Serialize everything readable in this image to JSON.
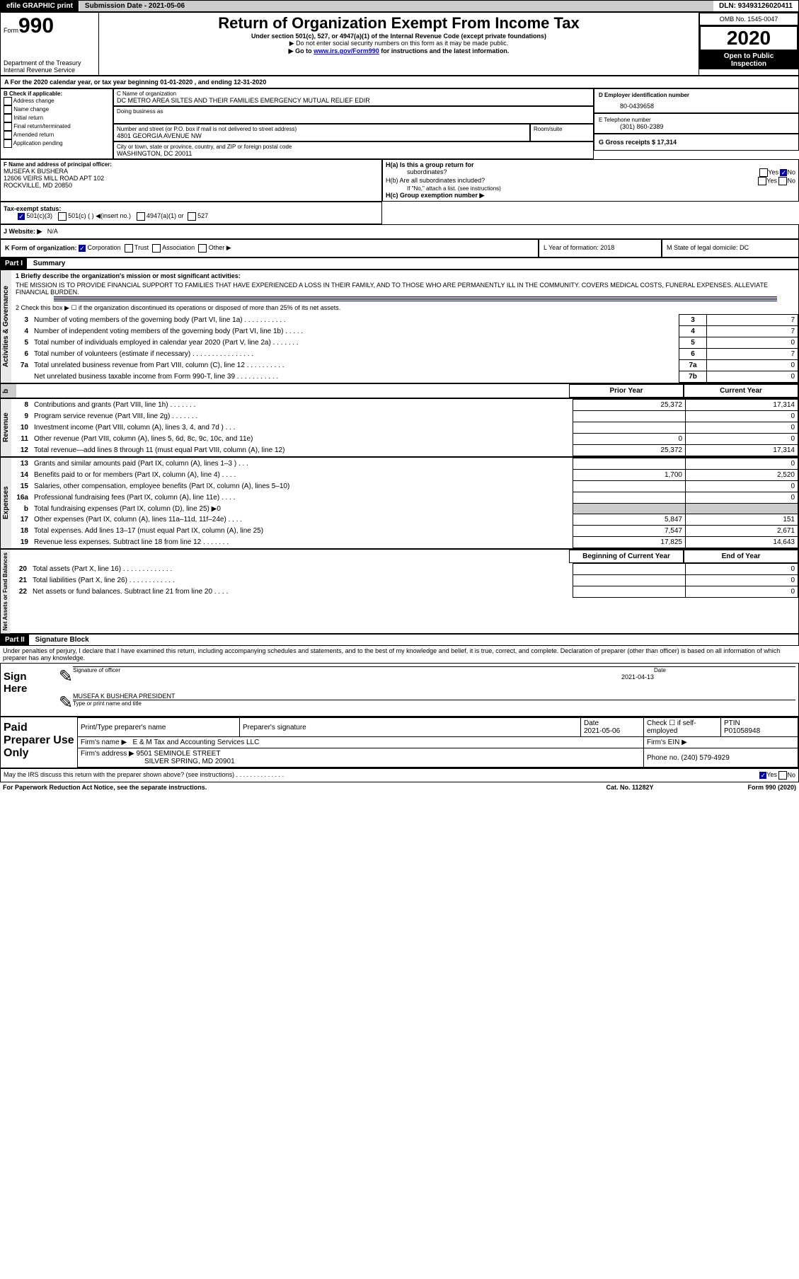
{
  "header": {
    "efile": "efile GRAPHIC print",
    "subdate_label": "Submission Date - 2021-05-06",
    "dln": "DLN: 93493126020411"
  },
  "form": {
    "form": "Form",
    "num": "990",
    "title": "Return of Organization Exempt From Income Tax",
    "sub1": "Under section 501(c), 527, or 4947(a)(1) of the Internal Revenue Code (except private foundations)",
    "sub2": "▶ Do not enter social security numbers on this form as it may be made public.",
    "sub3": "▶ Go to ",
    "sub3link": "www.irs.gov/Form990",
    "sub3b": " for instructions and the latest information.",
    "dept": "Department of the Treasury",
    "irs": "Internal Revenue Service",
    "omb": "OMB No. 1545-0047",
    "year": "2020",
    "open": "Open to Public",
    "insp": "Inspection"
  },
  "lineA": {
    "text": "A For the 2020 calendar year, or tax year beginning 01-01-2020   , and ending 12-31-2020"
  },
  "B": {
    "hdr": "B Check if applicable:",
    "items": [
      "Address change",
      "Name change",
      "Initial return",
      "Final return/terminated",
      "Amended return",
      "Application pending"
    ]
  },
  "C": {
    "label": "C Name of organization",
    "name": "DC METRO AREA SILTES AND THEIR FAMILIES EMERGENCY MUTUAL RELIEF EDIR",
    "dba": "Doing business as",
    "street_label": "Number and street (or P.O. box if mail is not delivered to street address)",
    "room": "Room/suite",
    "street": "4801 GEORGIA AVENUE NW",
    "city_label": "City or town, state or province, country, and ZIP or foreign postal code",
    "city": "WASHINGTON, DC  20011"
  },
  "D": {
    "label": "D Employer identification number",
    "ein": "80-0439658"
  },
  "E": {
    "label": "E Telephone number",
    "tel": "(301) 860-2389"
  },
  "G": {
    "label": "G Gross receipts $ 17,314"
  },
  "F": {
    "label": "F  Name and address of principal officer:",
    "name": "MUSEFA K BUSHERA",
    "addr1": "12606 VEIRS MILL ROAD APT 102",
    "addr2": "ROCKVILLE, MD  20850"
  },
  "H": {
    "a": "H(a)  Is this a group return for",
    "a2": "subordinates?",
    "yes": "Yes",
    "no": "No",
    "b": "H(b)  Are all subordinates included?",
    "bnote": "If \"No,\" attach a list. (see instructions)",
    "c": "H(c)  Group exemption number ▶"
  },
  "I": {
    "label": "Tax-exempt status:",
    "o1": "501(c)(3)",
    "o2": "501(c) (  ) ◀(insert no.)",
    "o3": "4947(a)(1) or",
    "o4": "527"
  },
  "J": {
    "label": "J   Website: ▶",
    "val": "N/A"
  },
  "K": {
    "label": "K Form of organization:",
    "o1": "Corporation",
    "o2": "Trust",
    "o3": "Association",
    "o4": "Other ▶"
  },
  "L": {
    "label": "L Year of formation: 2018"
  },
  "M": {
    "label": "M State of legal domicile: DC"
  },
  "p1": {
    "bar": "Part I",
    "title": "Summary",
    "q1": "1  Briefly describe the organization's mission or most significant activities:",
    "mission": "THE MISSION IS TO PROVIDE FINANCIAL SUPPORT TO FAMILIES THAT HAVE EXPERIENCED A LOSS IN THEIR FAMILY, AND TO THOSE WHO ARE PERMANENTLY ILL IN THE COMMUNITY. COVERS MEDICAL COSTS, FUNERAL EXPENSES. ALLEVIATE FINANCIAL BURDEN.",
    "q2": "2  Check this box ▶ ☐  if the organization discontinued its operations or disposed of more than 25% of its net assets.",
    "rows": [
      {
        "n": "3",
        "t": "Number of voting members of the governing body (Part VI, line 1a)  .   .   .   .   .   .   .   .   .   .   .",
        "box": "3",
        "v": "7"
      },
      {
        "n": "4",
        "t": "Number of independent voting members of the governing body (Part VI, line 1b)   .   .   .   .   .",
        "box": "4",
        "v": "7"
      },
      {
        "n": "5",
        "t": "Total number of individuals employed in calendar year 2020 (Part V, line 2a)   .   .   .   .   .   .   .",
        "box": "5",
        "v": "0"
      },
      {
        "n": "6",
        "t": "Total number of volunteers (estimate if necessary)    .   .   .   .   .   .   .   .   .   .   .   .   .   .   .   .",
        "box": "6",
        "v": "7"
      },
      {
        "n": "7a",
        "t": "Total unrelated business revenue from Part VIII, column (C), line 12   .   .   .   .   .   .   .   .   .   .",
        "box": "7a",
        "v": "0"
      },
      {
        "n": " ",
        "t": "Net unrelated business taxable income from Form 990-T, line 39   .   .   .   .   .   .   .   .   .   .   .",
        "box": "7b",
        "v": "0"
      }
    ],
    "prior": "Prior Year",
    "curr": "Current Year",
    "rev": [
      {
        "n": "8",
        "t": "Contributions and grants (Part VIII, line 1h)   .   .   .   .   .   .   .",
        "p": "25,372",
        "c": "17,314"
      },
      {
        "n": "9",
        "t": "Program service revenue (Part VIII, line 2g)   .   .   .   .   .   .   .",
        "p": "",
        "c": "0"
      },
      {
        "n": "10",
        "t": "Investment income (Part VIII, column (A), lines 3, 4, and 7d )   .   .   .",
        "p": "",
        "c": "0"
      },
      {
        "n": "11",
        "t": "Other revenue (Part VIII, column (A), lines 5, 6d, 8c, 9c, 10c, and 11e)",
        "p": "0",
        "c": "0"
      },
      {
        "n": "12",
        "t": "Total revenue—add lines 8 through 11 (must equal Part VIII, column (A), line 12)",
        "p": "25,372",
        "c": "17,314"
      }
    ],
    "exp": [
      {
        "n": "13",
        "t": "Grants and similar amounts paid (Part IX, column (A), lines 1–3 )  .   .   .",
        "p": "",
        "c": "0"
      },
      {
        "n": "14",
        "t": "Benefits paid to or for members (Part IX, column (A), line 4)   .   .   .   .",
        "p": "1,700",
        "c": "2,520"
      },
      {
        "n": "15",
        "t": "Salaries, other compensation, employee benefits (Part IX, column (A), lines 5–10)",
        "p": "",
        "c": "0"
      },
      {
        "n": "16a",
        "t": "Professional fundraising fees (Part IX, column (A), line 11e)   .   .   .   .",
        "p": "",
        "c": "0"
      },
      {
        "n": "b",
        "t": "Total fundraising expenses (Part IX, column (D), line 25) ▶0",
        "p": "GREY",
        "c": "GREY"
      },
      {
        "n": "17",
        "t": "Other expenses (Part IX, column (A), lines 11a–11d, 11f–24e)   .   .   .   .",
        "p": "5,847",
        "c": "151"
      },
      {
        "n": "18",
        "t": "Total expenses. Add lines 13–17 (must equal Part IX, column (A), line 25)",
        "p": "7,547",
        "c": "2,671"
      },
      {
        "n": "19",
        "t": "Revenue less expenses. Subtract line 18 from line 12  .   .   .   .   .   .   .",
        "p": "17,825",
        "c": "14,643"
      }
    ],
    "begin": "Beginning of Current Year",
    "end": "End of Year",
    "net": [
      {
        "n": "20",
        "t": "Total assets (Part X, line 16)  .   .   .   .   .   .   .   .   .   .   .   .   .",
        "p": "",
        "c": "0"
      },
      {
        "n": "21",
        "t": "Total liabilities (Part X, line 26)   .   .   .   .   .   .   .   .   .   .   .   .",
        "p": "",
        "c": "0"
      },
      {
        "n": "22",
        "t": "Net assets or fund balances. Subtract line 21 from line 20   .   .   .   .",
        "p": "",
        "c": "0"
      }
    ],
    "side": {
      "ag": "Activities & Governance",
      "rev": "Revenue",
      "exp": "Expenses",
      "net": "Net Assets or Fund Balances",
      "b": "b"
    }
  },
  "p2": {
    "bar": "Part II",
    "title": "Signature Block",
    "decl": "Under penalties of perjury, I declare that I have examined this return, including accompanying schedules and statements, and to the best of my knowledge and belief, it is true, correct, and complete. Declaration of preparer (other than officer) is based on all information of which preparer has any knowledge."
  },
  "sign": {
    "here": "Sign Here",
    "sigoff": "Signature of officer",
    "date": "Date",
    "dateval": "2021-04-13",
    "name": "MUSEFA K BUSHERA PRESIDENT",
    "type": "Type or print name and title"
  },
  "paid": {
    "title": "Paid Preparer Use Only",
    "c1": "Print/Type preparer's name",
    "c2": "Preparer's signature",
    "c3": "Date",
    "c3v": "2021-05-06",
    "c4": "Check ☐ if self-employed",
    "c5": "PTIN",
    "c5v": "P01058948",
    "firm": "Firm's name   ▶",
    "firmv": "E & M Tax and Accounting Services LLC",
    "ein": "Firm's EIN ▶",
    "addr": "Firm's address ▶",
    "addrv": "9501 SEMINOLE STREET",
    "addrv2": "SILVER SPRING, MD  20901",
    "phone": "Phone no. (240) 579-4929",
    "discuss": "May the IRS discuss this return with the preparer shown above? (see instructions)   .   .   .   .   .   .   .   .   .   .   .   .   .   .",
    "yes": "Yes",
    "no": "No"
  },
  "footer": {
    "l": "For Paperwork Reduction Act Notice, see the separate instructions.",
    "m": "Cat. No. 11282Y",
    "r": "Form 990 (2020)"
  }
}
